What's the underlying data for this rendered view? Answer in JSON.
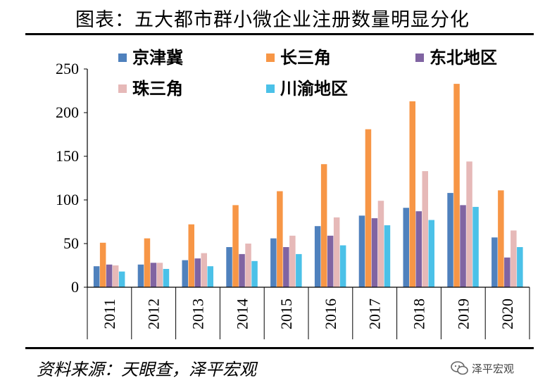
{
  "header": {
    "title": "图表：五大都市群小微企业注册数量明显分化"
  },
  "footer": {
    "source": "资料来源：天眼查，泽平宏观",
    "watermark": "泽平宏观"
  },
  "chart_data": {
    "type": "bar",
    "title": "",
    "xlabel": "",
    "ylabel": "",
    "categories": [
      "2011",
      "2012",
      "2013",
      "2014",
      "2015",
      "2016",
      "2017",
      "2018",
      "2019",
      "2020"
    ],
    "ylim": [
      0,
      250
    ],
    "yticks": [
      0,
      50,
      100,
      150,
      200,
      250
    ],
    "grid": false,
    "legend": "top",
    "series": [
      {
        "name": "京津冀",
        "color": "#4f81bd",
        "values": [
          24,
          26,
          31,
          46,
          56,
          70,
          82,
          91,
          108,
          57
        ]
      },
      {
        "name": "长三角",
        "color": "#f79646",
        "values": [
          51,
          56,
          72,
          94,
          110,
          141,
          181,
          213,
          233,
          111
        ]
      },
      {
        "name": "东北地区",
        "color": "#8064a2",
        "values": [
          26,
          28,
          33,
          38,
          46,
          59,
          79,
          87,
          94,
          34
        ]
      },
      {
        "name": "珠三角",
        "color": "#e6b9b8",
        "values": [
          25,
          28,
          39,
          50,
          59,
          80,
          99,
          133,
          144,
          65
        ]
      },
      {
        "name": "川渝地区",
        "color": "#4bc1e8",
        "values": [
          18,
          21,
          24,
          30,
          38,
          48,
          71,
          77,
          92,
          46
        ]
      }
    ]
  }
}
